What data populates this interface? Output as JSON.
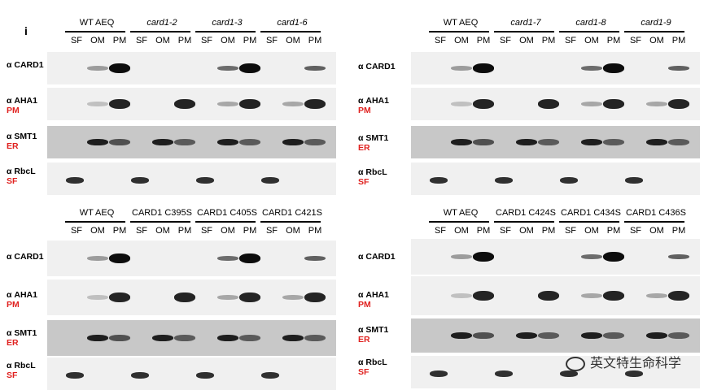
{
  "panel_letter": "i",
  "fraction_labels": [
    "SF",
    "OM",
    "PM"
  ],
  "antibodies": [
    {
      "name": "α CARD1",
      "marker": ""
    },
    {
      "name": "α AHA1",
      "marker": "PM"
    },
    {
      "name": "α SMT1",
      "marker": "ER"
    },
    {
      "name": "α RbcL",
      "marker": "SF"
    }
  ],
  "panels": [
    {
      "id": "top_left",
      "groups": [
        {
          "label": "WT AEQ",
          "italic": false
        },
        {
          "label": "card1-2",
          "italic": true
        },
        {
          "label": "card1-3",
          "italic": true
        },
        {
          "label": "card1-6",
          "italic": true
        }
      ]
    },
    {
      "id": "top_right",
      "groups": [
        {
          "label": "WT AEQ",
          "italic": false
        },
        {
          "label": "card1-7",
          "italic": true
        },
        {
          "label": "card1-8",
          "italic": true
        },
        {
          "label": "card1-9",
          "italic": true
        }
      ]
    },
    {
      "id": "bottom_left",
      "groups": [
        {
          "label": "WT AEQ",
          "italic": false
        },
        {
          "label": "CARD1 C395S",
          "italic": false
        },
        {
          "label": "CARD1 C405S",
          "italic": false
        },
        {
          "label": "CARD1 C421S",
          "italic": false
        }
      ]
    },
    {
      "id": "bottom_right",
      "groups": [
        {
          "label": "WT AEQ",
          "italic": false
        },
        {
          "label": "CARD1 C424S",
          "italic": false
        },
        {
          "label": "CARD1 C434S",
          "italic": false
        },
        {
          "label": "CARD1 C436S",
          "italic": false
        }
      ]
    }
  ],
  "watermark": "英文特生命科学"
}
